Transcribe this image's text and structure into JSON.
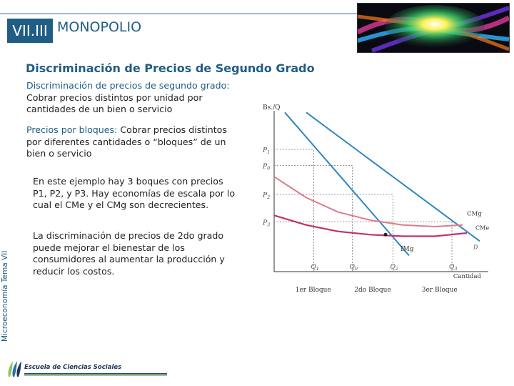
{
  "header": {
    "section_number": "VII.III",
    "section_title": "MONOPOLIO",
    "subtitle": "Discriminación de Precios de Segundo Grado"
  },
  "body": {
    "def_line1_label": "Discriminación de precios de segundo grado:",
    "def_line2": "Cobrar precios distintos por unidad por",
    "def_line3": "cantidades de un bien o servicio",
    "blocks_line1_label": "Precios por bloques:",
    "blocks_line1_rest": " Cobrar precios distintos",
    "blocks_line2": "por diferentes cantidades o “bloques” de un",
    "blocks_line3": "bien o servicio",
    "example_line1": "En este ejemplo hay 3 boques con precios",
    "example_line2": "P1, P2, y P3. Hay economías de escala por lo",
    "example_line3": "cual el CMe y el CMg son decrecientes.",
    "welfare_line1": "La discriminación de precios de 2do grado",
    "welfare_line2": "puede mejorar el bienestar de los",
    "welfare_line3": "consumidores al aumentar la producción y",
    "welfare_line4": "reducir los costos."
  },
  "sidebar": {
    "vertical_label": "Microeconomía Tema VII"
  },
  "footer": {
    "school_name": "Escuela de Ciencias Sociales"
  },
  "chart_data": {
    "type": "line",
    "ylabel": "Bs./Q",
    "xlabel": "Cantidad",
    "xlim": [
      0,
      10
    ],
    "ylim": [
      0,
      10
    ],
    "y_ticks": [
      {
        "label": "P1",
        "value": 7.6
      },
      {
        "label": "P0",
        "value": 6.6
      },
      {
        "label": "P2",
        "value": 4.8
      },
      {
        "label": "P3",
        "value": 3.1
      }
    ],
    "x_ticks": [
      {
        "label": "Q1",
        "value": 1.85
      },
      {
        "label": "Q0",
        "value": 3.65
      },
      {
        "label": "Q2",
        "value": 5.55
      },
      {
        "label": "Q3",
        "value": 8.3
      }
    ],
    "curve_labels": {
      "cmg": "CMg",
      "cme": "CMe",
      "img": "IMg",
      "d": "D"
    },
    "block_labels": [
      "1er Bloque",
      "2do Bloque",
      "3er Bloque"
    ],
    "series": [
      {
        "name": "D",
        "x": [
          1.5,
          9.6
        ],
        "y": [
          9.9,
          1.9
        ]
      },
      {
        "name": "IMg",
        "x": [
          0.5,
          6.3
        ],
        "y": [
          9.9,
          1.0
        ]
      },
      {
        "name": "CMg",
        "x": [
          0,
          1.5,
          3,
          4.5,
          6,
          7.5,
          8.8
        ],
        "y": [
          5.9,
          4.6,
          3.7,
          3.2,
          2.9,
          2.8,
          2.9
        ]
      },
      {
        "name": "CMe",
        "x": [
          0,
          1.5,
          3,
          4.5,
          6,
          7.5,
          9.0
        ],
        "y": [
          3.5,
          2.9,
          2.5,
          2.3,
          2.2,
          2.2,
          2.4
        ]
      }
    ],
    "colors": {
      "demand": "#2d86c4",
      "img": "#2d86c4",
      "cmg": "#e07a8a",
      "cme": "#c2306a"
    }
  }
}
